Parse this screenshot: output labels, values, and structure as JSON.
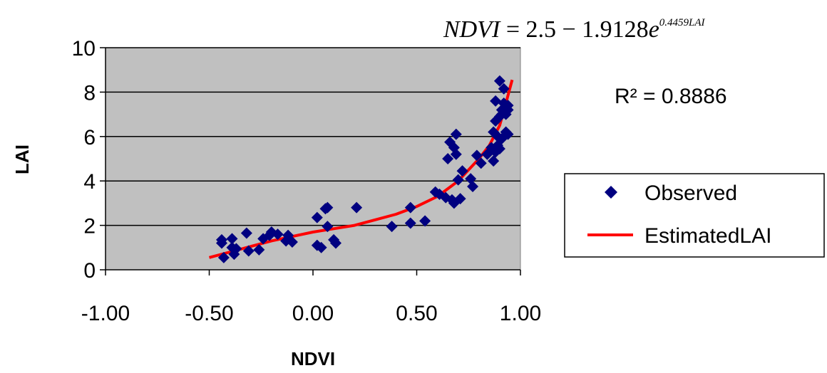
{
  "chart_data": {
    "type": "scatter",
    "xlabel": "NDVI",
    "ylabel": "LAI",
    "xlim": [
      -1.0,
      1.0
    ],
    "ylim": [
      0,
      10
    ],
    "x_ticks": [
      "-1.00",
      "-0.50",
      "0.00",
      "0.50",
      "1.00"
    ],
    "y_ticks": [
      "0",
      "2",
      "4",
      "6",
      "8",
      "10"
    ],
    "plot_background": "#c0c0c0",
    "grid": "horizontal",
    "legend_position": "right",
    "equation": {
      "lhs": "NDVI",
      "eq": " = 2.5 − 1.9128",
      "base": "e",
      "exponent": "0.4459LAI"
    },
    "r_squared": "R² = 0.8886",
    "series": [
      {
        "name": "Observed",
        "kind": "scatter",
        "marker": "diamond",
        "color": "#000080",
        "points": [
          [
            -0.44,
            1.35
          ],
          [
            -0.44,
            1.2
          ],
          [
            -0.43,
            0.55
          ],
          [
            -0.39,
            1.4
          ],
          [
            -0.39,
            1.0
          ],
          [
            -0.38,
            0.7
          ],
          [
            -0.37,
            0.95
          ],
          [
            -0.32,
            1.65
          ],
          [
            -0.31,
            0.85
          ],
          [
            -0.26,
            0.9
          ],
          [
            -0.24,
            1.4
          ],
          [
            -0.21,
            1.55
          ],
          [
            -0.2,
            1.7
          ],
          [
            -0.17,
            1.6
          ],
          [
            -0.13,
            1.3
          ],
          [
            -0.12,
            1.55
          ],
          [
            -0.1,
            1.25
          ],
          [
            0.02,
            2.35
          ],
          [
            0.02,
            1.1
          ],
          [
            0.04,
            1.0
          ],
          [
            0.06,
            2.75
          ],
          [
            0.07,
            2.8
          ],
          [
            0.07,
            1.95
          ],
          [
            0.1,
            1.35
          ],
          [
            0.11,
            1.2
          ],
          [
            0.21,
            2.8
          ],
          [
            0.38,
            1.95
          ],
          [
            0.47,
            2.8
          ],
          [
            0.47,
            2.1
          ],
          [
            0.54,
            2.2
          ],
          [
            0.59,
            3.5
          ],
          [
            0.61,
            3.4
          ],
          [
            0.64,
            3.25
          ],
          [
            0.65,
            5.0
          ],
          [
            0.66,
            5.75
          ],
          [
            0.67,
            3.15
          ],
          [
            0.68,
            3.0
          ],
          [
            0.68,
            5.5
          ],
          [
            0.69,
            5.2
          ],
          [
            0.69,
            6.1
          ],
          [
            0.7,
            4.05
          ],
          [
            0.71,
            3.2
          ],
          [
            0.72,
            4.45
          ],
          [
            0.76,
            4.1
          ],
          [
            0.77,
            3.75
          ],
          [
            0.79,
            5.15
          ],
          [
            0.81,
            4.8
          ],
          [
            0.84,
            5.2
          ],
          [
            0.86,
            5.5
          ],
          [
            0.87,
            6.2
          ],
          [
            0.87,
            4.9
          ],
          [
            0.88,
            5.3
          ],
          [
            0.88,
            6.7
          ],
          [
            0.88,
            7.6
          ],
          [
            0.89,
            5.6
          ],
          [
            0.89,
            6.0
          ],
          [
            0.9,
            8.5
          ],
          [
            0.9,
            6.9
          ],
          [
            0.9,
            5.45
          ],
          [
            0.91,
            7.2
          ],
          [
            0.91,
            5.9
          ],
          [
            0.91,
            7.0
          ],
          [
            0.92,
            8.15
          ],
          [
            0.92,
            7.5
          ],
          [
            0.93,
            7.0
          ],
          [
            0.93,
            6.2
          ],
          [
            0.94,
            7.4
          ],
          [
            0.94,
            6.1
          ],
          [
            0.94,
            7.2
          ]
        ]
      },
      {
        "name": "EstimatedLAI",
        "kind": "line",
        "color": "#ff0000",
        "points": [
          [
            -0.5,
            0.55
          ],
          [
            -0.4,
            0.8
          ],
          [
            -0.3,
            1.05
          ],
          [
            -0.2,
            1.3
          ],
          [
            -0.1,
            1.5
          ],
          [
            0.0,
            1.7
          ],
          [
            0.1,
            1.85
          ],
          [
            0.2,
            2.0
          ],
          [
            0.3,
            2.25
          ],
          [
            0.4,
            2.5
          ],
          [
            0.5,
            2.85
          ],
          [
            0.6,
            3.3
          ],
          [
            0.7,
            4.0
          ],
          [
            0.8,
            5.0
          ],
          [
            0.85,
            5.6
          ],
          [
            0.9,
            6.5
          ],
          [
            0.93,
            7.5
          ],
          [
            0.96,
            8.55
          ]
        ]
      }
    ]
  }
}
